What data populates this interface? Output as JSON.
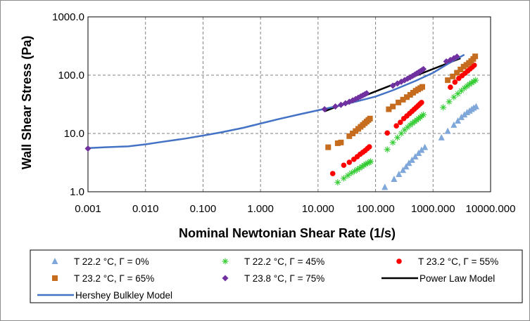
{
  "chart_data": {
    "type": "scatter",
    "xscale": "log",
    "yscale": "log",
    "xlim": [
      0.001,
      10000
    ],
    "ylim": [
      1,
      1000
    ],
    "grid": true,
    "legend_position": "bottom",
    "title": "",
    "xlabel": "Nominal Newtonian Shear Rate (1/s)",
    "ylabel": "Wall Shear Stress (Pa)",
    "x_tick_labels": [
      "0.001",
      "0.010",
      "0.100",
      "1.000",
      "10.000",
      "100.000",
      "1000.000",
      "10000.000"
    ],
    "x_tick_values": [
      0.001,
      0.01,
      0.1,
      1,
      10,
      100,
      1000,
      10000
    ],
    "y_tick_labels": [
      "1.0",
      "10.0",
      "100.0",
      "1000.0"
    ],
    "y_tick_values": [
      1,
      10,
      100,
      1000
    ],
    "series": [
      {
        "name": "T  22.2  °C, Γ = 0%",
        "marker": "triangle",
        "color": "#7fa7d9",
        "x": [
          145,
          210,
          255,
          300,
          340,
          380,
          430,
          490,
          560,
          630,
          720,
          1400,
          1800,
          2300,
          2700,
          3100,
          3500,
          3900,
          4300,
          4700,
          5100,
          5600
        ],
        "y": [
          1.2,
          1.65,
          2.0,
          2.35,
          2.7,
          3.1,
          3.5,
          4.0,
          4.6,
          5.2,
          5.8,
          8.5,
          11,
          14,
          16.5,
          19,
          21,
          23,
          24.5,
          26,
          27.5,
          29
        ]
      },
      {
        "name": "T  22.2  °C, Γ = 45%",
        "marker": "star",
        "color": "#33cc33",
        "x": [
          22,
          28,
          33,
          38,
          43,
          48,
          53,
          58,
          63,
          68,
          73,
          78,
          82,
          160,
          200,
          240,
          280,
          320,
          360,
          400,
          440,
          480,
          520,
          560,
          600,
          640,
          680,
          1500,
          1900,
          2300,
          2700,
          3100,
          3500,
          3900,
          4300,
          4700,
          5100,
          5500
        ],
        "y": [
          1.45,
          1.7,
          1.9,
          2.1,
          2.25,
          2.4,
          2.55,
          2.7,
          2.85,
          3.0,
          3.1,
          3.2,
          3.3,
          5.3,
          7.0,
          8.5,
          10,
          11.5,
          12.8,
          14,
          15,
          16,
          17,
          18,
          19,
          20,
          21,
          28,
          35,
          42,
          48,
          54,
          60,
          65,
          70,
          74,
          78,
          82
        ]
      },
      {
        "name": "T  23.2  °C, Γ = 55%",
        "marker": "circle",
        "color": "#ff0000",
        "x": [
          18,
          28,
          35,
          42,
          48,
          54,
          60,
          66,
          72,
          78,
          160,
          230,
          270,
          310,
          350,
          390,
          430,
          470,
          510,
          550,
          590,
          630,
          2000,
          2400,
          2800,
          3200,
          3600,
          4000,
          4400,
          4800,
          5200
        ],
        "y": [
          2.05,
          2.85,
          3.2,
          3.6,
          4.0,
          4.4,
          4.75,
          5.1,
          5.5,
          5.9,
          10.2,
          13.5,
          15.5,
          18,
          20,
          22,
          24,
          26,
          28,
          30,
          32,
          34,
          62,
          76,
          88,
          98,
          108,
          118,
          128,
          138,
          148
        ]
      },
      {
        "name": "T  23.2  °C, Γ = 65%",
        "marker": "square",
        "color": "#c56c1e",
        "x": [
          15,
          22,
          25,
          35,
          40,
          45,
          50,
          55,
          60,
          65,
          70,
          75,
          80,
          170,
          200,
          250,
          300,
          350,
          400,
          450,
          500,
          550,
          600,
          650,
          1800,
          2200,
          2600,
          3000,
          3400,
          3800,
          4200,
          4600,
          5000,
          5400
        ],
        "y": [
          5.8,
          6.8,
          7.0,
          9.0,
          10.0,
          11.0,
          12.0,
          13.0,
          14.0,
          15.0,
          16.0,
          17.0,
          18.0,
          26,
          29,
          34,
          38,
          42,
          46,
          50,
          54,
          57,
          60,
          63,
          82,
          95,
          110,
          125,
          140,
          150,
          162,
          175,
          190,
          210
        ]
      },
      {
        "name": "T  23.8  °C, Γ = 75%",
        "marker": "diamond",
        "color": "#7030a0",
        "x": [
          0.001,
          13,
          20,
          25,
          30,
          35,
          40,
          45,
          50,
          55,
          60,
          65,
          70,
          200,
          240,
          280,
          320,
          360,
          400,
          440,
          480,
          520,
          560,
          600,
          640,
          680,
          1700,
          2000,
          2300,
          2600
        ],
        "y": [
          5.5,
          26,
          29,
          31,
          33,
          35,
          37,
          39,
          41,
          43,
          45,
          47,
          49,
          66,
          72,
          77,
          82,
          87,
          92,
          97,
          102,
          107,
          112,
          117,
          122,
          127,
          172,
          182,
          195,
          208
        ]
      }
    ],
    "lines": [
      {
        "name": "Power Law Model",
        "color": "#000000",
        "x": [
          13,
          3000
        ],
        "y": [
          24,
          195
        ]
      },
      {
        "name": "Hershey Bulkley Model",
        "color": "#4472c4",
        "x": [
          0.001,
          0.002,
          0.005,
          0.01,
          0.02,
          0.05,
          0.1,
          0.2,
          0.5,
          1,
          2,
          5,
          10,
          20,
          50,
          100,
          200,
          500,
          1000,
          2000,
          3500
        ],
        "y": [
          5.6,
          5.8,
          6.0,
          6.5,
          7.2,
          8.2,
          9.2,
          10.4,
          12.5,
          14.8,
          17.5,
          21.5,
          25,
          29,
          36,
          43,
          55,
          80,
          110,
          165,
          225
        ]
      }
    ]
  }
}
